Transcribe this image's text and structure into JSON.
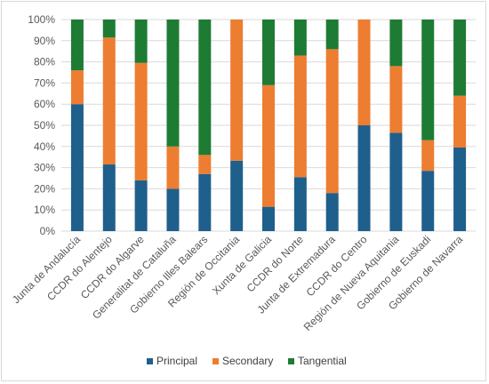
{
  "chart_data": {
    "type": "bar",
    "stacked": true,
    "percent_stacked": true,
    "categories": [
      "Junta de Andalucía",
      "CCDR do Alentejo",
      "CCDR do Algarve",
      "Generalitat de Cataluña",
      "Gobierno Illes Balears",
      "Región de Occitania",
      "Xunta de Galicia",
      "CCDR do Norte",
      "Junta de Extremadura",
      "CCDR do Centro",
      "Región de Nueva Aquitania",
      "Gobierno de Euskadi",
      "Gobierno de Navarra"
    ],
    "series": [
      {
        "name": "Principal",
        "color": "#1f5f8b",
        "values": [
          60,
          31.5,
          24,
          20,
          27,
          33.3,
          11.5,
          25.5,
          18,
          50,
          46.5,
          28.5,
          39.5
        ]
      },
      {
        "name": "Secondary",
        "color": "#ed7d31",
        "values": [
          16,
          60,
          55.5,
          20,
          9,
          66.7,
          57.5,
          57.5,
          68,
          50,
          31.5,
          14.5,
          24.5
        ]
      },
      {
        "name": "Tangential",
        "color": "#1e7b34",
        "values": [
          24,
          8.5,
          20.5,
          60,
          64,
          0,
          31,
          17,
          14,
          0,
          22,
          57,
          36
        ]
      }
    ],
    "y_ticks": [
      "0%",
      "10%",
      "20%",
      "30%",
      "40%",
      "50%",
      "60%",
      "70%",
      "80%",
      "90%",
      "100%"
    ],
    "ylim": [
      0,
      100
    ],
    "title": "",
    "xlabel": "",
    "ylabel": "",
    "grid": true,
    "legend_position": "bottom"
  }
}
